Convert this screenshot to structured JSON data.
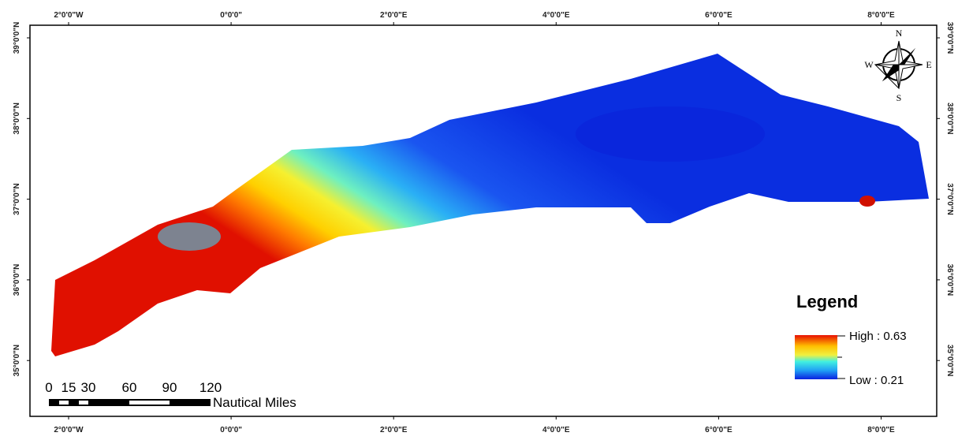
{
  "map": {
    "lon_labels": [
      "2°0'0\"W",
      "0°0'0\"",
      "2°0'0\"E",
      "4°0'0\"E",
      "6°0'0\"E",
      "8°0'0\"E"
    ],
    "lat_labels": [
      "39°0'0\"N",
      "38°0'0\"N",
      "37°0'0\"N",
      "36°0'0\"N",
      "35°0'0\"N"
    ],
    "compass": {
      "north": "N",
      "south": "S",
      "east": "E",
      "west": "W"
    },
    "legend": {
      "title": "Legend",
      "high_label": "High : 0.63",
      "low_label": "Low : 0.21"
    },
    "scale_bar": {
      "ticks": [
        "0",
        "15",
        "30",
        "60",
        "90",
        "120"
      ],
      "unit": "Nautical Miles"
    }
  }
}
